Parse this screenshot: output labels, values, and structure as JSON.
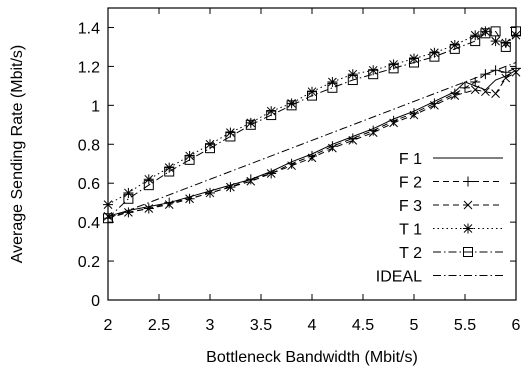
{
  "chart_data": {
    "type": "line",
    "xlabel": "Bottleneck Bandwidth (Mbit/s)",
    "ylabel": "Average Sending Rate (Mbit/s)",
    "xlim": [
      2,
      6
    ],
    "ylim": [
      0,
      1.5
    ],
    "xticks": [
      2,
      2.5,
      3,
      3.5,
      4,
      4.5,
      5,
      5.5,
      6
    ],
    "xtick_labels": [
      "2",
      "2.5",
      "3",
      "3.5",
      "4",
      "4.5",
      "5",
      "5.5",
      "6"
    ],
    "yticks": [
      0,
      0.2,
      0.4,
      0.6,
      0.8,
      1,
      1.2,
      1.4
    ],
    "ytick_labels": [
      "0",
      "0.2",
      "0.4",
      "0.6",
      "0.8",
      "1",
      "1.2",
      "1.4"
    ],
    "grid": false,
    "legend": "right",
    "series": [
      {
        "name": "F 1",
        "line": "solid",
        "marker": "none",
        "x": [
          2.0,
          2.2,
          2.4,
          2.6,
          2.8,
          3.0,
          3.2,
          3.4,
          3.6,
          3.8,
          4.0,
          4.2,
          4.4,
          4.6,
          4.8,
          5.0,
          5.2,
          5.4,
          5.5,
          5.6,
          5.7,
          5.8,
          5.9,
          6.0
        ],
        "y": [
          0.43,
          0.46,
          0.48,
          0.5,
          0.53,
          0.56,
          0.59,
          0.62,
          0.66,
          0.71,
          0.75,
          0.8,
          0.84,
          0.88,
          0.93,
          0.97,
          1.02,
          1.07,
          1.12,
          1.1,
          1.08,
          1.13,
          1.15,
          1.18
        ]
      },
      {
        "name": "F 2",
        "line": "dashed",
        "marker": "plus",
        "x": [
          2.0,
          2.2,
          2.4,
          2.6,
          2.8,
          3.0,
          3.2,
          3.4,
          3.6,
          3.8,
          4.0,
          4.2,
          4.4,
          4.6,
          4.8,
          5.0,
          5.2,
          5.4,
          5.5,
          5.6,
          5.7,
          5.8,
          5.9,
          6.0
        ],
        "y": [
          0.42,
          0.45,
          0.47,
          0.5,
          0.52,
          0.55,
          0.58,
          0.62,
          0.65,
          0.7,
          0.74,
          0.79,
          0.83,
          0.87,
          0.92,
          0.96,
          1.01,
          1.06,
          1.09,
          1.12,
          1.16,
          1.18,
          1.17,
          1.19
        ]
      },
      {
        "name": "F 3",
        "line": "dashed",
        "marker": "x",
        "x": [
          2.0,
          2.2,
          2.4,
          2.6,
          2.8,
          3.0,
          3.2,
          3.4,
          3.6,
          3.8,
          4.0,
          4.2,
          4.4,
          4.6,
          4.8,
          5.0,
          5.2,
          5.4,
          5.6,
          5.7,
          5.8,
          5.9,
          6.0
        ],
        "y": [
          0.43,
          0.45,
          0.47,
          0.49,
          0.52,
          0.55,
          0.58,
          0.61,
          0.65,
          0.69,
          0.73,
          0.78,
          0.82,
          0.86,
          0.91,
          0.95,
          1.0,
          1.05,
          1.08,
          1.07,
          1.06,
          1.14,
          1.17
        ]
      },
      {
        "name": "T 1",
        "line": "dotted",
        "marker": "star",
        "x": [
          2.0,
          2.2,
          2.4,
          2.6,
          2.8,
          3.0,
          3.2,
          3.4,
          3.6,
          3.8,
          4.0,
          4.2,
          4.4,
          4.6,
          4.8,
          5.0,
          5.2,
          5.4,
          5.6,
          5.7,
          5.8,
          5.9,
          6.0
        ],
        "y": [
          0.49,
          0.55,
          0.62,
          0.68,
          0.74,
          0.8,
          0.86,
          0.91,
          0.97,
          1.01,
          1.07,
          1.12,
          1.16,
          1.18,
          1.21,
          1.24,
          1.27,
          1.31,
          1.36,
          1.38,
          1.33,
          1.32,
          1.36
        ]
      },
      {
        "name": "T 2",
        "line": "dash-dot",
        "marker": "square",
        "x": [
          2.0,
          2.2,
          2.4,
          2.6,
          2.8,
          3.0,
          3.2,
          3.4,
          3.6,
          3.8,
          4.0,
          4.2,
          4.4,
          4.6,
          4.8,
          5.0,
          5.2,
          5.4,
          5.6,
          5.7,
          5.8,
          5.9,
          6.0
        ],
        "y": [
          0.42,
          0.52,
          0.59,
          0.66,
          0.72,
          0.78,
          0.84,
          0.9,
          0.95,
          1.0,
          1.05,
          1.09,
          1.13,
          1.16,
          1.19,
          1.22,
          1.25,
          1.29,
          1.33,
          1.37,
          1.38,
          1.3,
          1.38
        ]
      },
      {
        "name": "IDEAL",
        "line": "dash-dot",
        "marker": "none",
        "x": [
          2,
          6
        ],
        "y": [
          0.42,
          1.22
        ]
      }
    ]
  }
}
